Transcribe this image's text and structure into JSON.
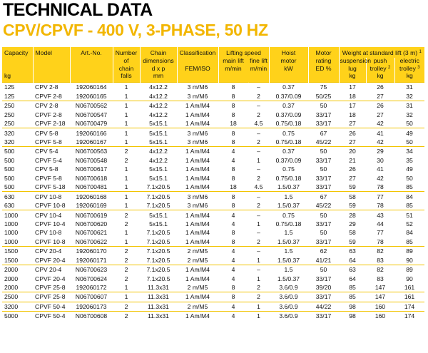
{
  "title": "TECHNICAL DATA",
  "subtitle": "CPV/CPVF - 400 V, 3-PHASE, 50 HZ",
  "header": {
    "capacity": "Capacity",
    "capacity_unit": "kg",
    "model": "Model",
    "art_no": "Art.-No.",
    "chain_falls_1": "Number",
    "chain_falls_2": "of",
    "chain_falls_3": "chain",
    "chain_falls_4": "falls",
    "chain_dim_1": "Chain",
    "chain_dim_2": "dimensions",
    "chain_dim_3": "d x p",
    "chain_dim_unit": "mm",
    "classification": "Classification",
    "classification_sub": "FEM/ISO",
    "lifting_speed": "Lifting speed",
    "main_lift": "main lift",
    "fine_lift": "fine lift",
    "speed_unit": "m/min",
    "hoist_motor": "Hoist",
    "hoist_motor_2": "motor",
    "hoist_unit": "kW",
    "motor_rating": "Motor",
    "motor_rating_2": "rating",
    "motor_rating_unit": "ED %",
    "weight": "Weight at standard lift (3 m)",
    "weight_sup": "1",
    "suspension_1": "suspension",
    "suspension_2": "lug",
    "push_1": "push",
    "push_2": "trolley",
    "push_sup": "2",
    "electric_1": "electric",
    "electric_2": "trolley",
    "electric_sup": "3",
    "weight_unit": "kg"
  },
  "rows": [
    {
      "cap": "125",
      "model": "CPV 2-8",
      "art": "192060164",
      "falls": "1",
      "chain": "4x12.2",
      "cls": "3 m/M6",
      "main": "8",
      "fine": "–",
      "kw": "0.37",
      "ed": "75",
      "susp": "17",
      "push": "26",
      "elec": "31",
      "g": true
    },
    {
      "cap": "125",
      "model": "CPVF 2-8",
      "art": "192060165",
      "falls": "1",
      "chain": "4x12.2",
      "cls": "3 m/M6",
      "main": "8",
      "fine": "2",
      "kw": "0.37/0.09",
      "ed": "50/25",
      "susp": "18",
      "push": "27",
      "elec": "32",
      "g": false
    },
    {
      "cap": "250",
      "model": "CPV 2-8",
      "art": "N06700562",
      "falls": "1",
      "chain": "4x12.2",
      "cls": "1 Am/M4",
      "main": "8",
      "fine": "–",
      "kw": "0.37",
      "ed": "50",
      "susp": "17",
      "push": "26",
      "elec": "31",
      "g": true
    },
    {
      "cap": "250",
      "model": "CPVF 2-8",
      "art": "N06700547",
      "falls": "1",
      "chain": "4x12.2",
      "cls": "1 Am/M4",
      "main": "8",
      "fine": "2",
      "kw": "0.37/0.09",
      "ed": "33/17",
      "susp": "18",
      "push": "27",
      "elec": "32",
      "g": false
    },
    {
      "cap": "250",
      "model": "CPVF 2-18",
      "art": "N06700479",
      "falls": "1",
      "chain": "5x15.1",
      "cls": "1 Am/M4",
      "main": "18",
      "fine": "4.5",
      "kw": "0.75/0.18",
      "ed": "33/17",
      "susp": "27",
      "push": "42",
      "elec": "50",
      "g": false
    },
    {
      "cap": "320",
      "model": "CPV 5-8",
      "art": "192060166",
      "falls": "1",
      "chain": "5x15.1",
      "cls": "3 m/M6",
      "main": "8",
      "fine": "–",
      "kw": "0.75",
      "ed": "67",
      "susp": "26",
      "push": "41",
      "elec": "49",
      "g": true
    },
    {
      "cap": "320",
      "model": "CPVF 5-8",
      "art": "192060167",
      "falls": "1",
      "chain": "5x15.1",
      "cls": "3 m/M6",
      "main": "8",
      "fine": "2",
      "kw": "0.75/0.18",
      "ed": "45/22",
      "susp": "27",
      "push": "42",
      "elec": "50",
      "g": false
    },
    {
      "cap": "500",
      "model": "CPV 5-4",
      "art": "N06700563",
      "falls": "2",
      "chain": "4x12.2",
      "cls": "1 Am/M4",
      "main": "4",
      "fine": "–",
      "kw": "0.37",
      "ed": "50",
      "susp": "20",
      "push": "29",
      "elec": "34",
      "g": true
    },
    {
      "cap": "500",
      "model": "CPVF 5-4",
      "art": "N06700548",
      "falls": "2",
      "chain": "4x12.2",
      "cls": "1 Am/M4",
      "main": "4",
      "fine": "1",
      "kw": "0.37/0.09",
      "ed": "33/17",
      "susp": "21",
      "push": "30",
      "elec": "35",
      "g": false
    },
    {
      "cap": "500",
      "model": "CPV 5-8",
      "art": "N06700617",
      "falls": "1",
      "chain": "5x15.1",
      "cls": "1 Am/M4",
      "main": "8",
      "fine": "–",
      "kw": "0.75",
      "ed": "50",
      "susp": "26",
      "push": "41",
      "elec": "49",
      "g": false
    },
    {
      "cap": "500",
      "model": "CPVF 5-8",
      "art": "N06700618",
      "falls": "1",
      "chain": "5x15.1",
      "cls": "1 Am/M4",
      "main": "8",
      "fine": "2",
      "kw": "0.75/0.18",
      "ed": "33/17",
      "susp": "27",
      "push": "42",
      "elec": "50",
      "g": false
    },
    {
      "cap": "500",
      "model": "CPVF 5-18",
      "art": "N06700481",
      "falls": "1",
      "chain": "7.1x20.5",
      "cls": "1 Am/M4",
      "main": "18",
      "fine": "4.5",
      "kw": "1.5/0.37",
      "ed": "33/17",
      "susp": "59",
      "push": "78",
      "elec": "85",
      "g": false
    },
    {
      "cap": "630",
      "model": "CPV 10-8",
      "art": "192060168",
      "falls": "1",
      "chain": "7.1x20.5",
      "cls": "3 m/M6",
      "main": "8",
      "fine": "–",
      "kw": "1.5",
      "ed": "67",
      "susp": "58",
      "push": "77",
      "elec": "84",
      "g": true
    },
    {
      "cap": "630",
      "model": "CPVF 10-8",
      "art": "192060169",
      "falls": "1",
      "chain": "7.1x20.5",
      "cls": "3 m/M6",
      "main": "8",
      "fine": "2",
      "kw": "1.5/0.37",
      "ed": "45/22",
      "susp": "59",
      "push": "78",
      "elec": "85",
      "g": false
    },
    {
      "cap": "1000",
      "model": "CPV 10-4",
      "art": "N06700619",
      "falls": "2",
      "chain": "5x15.1",
      "cls": "1 Am/M4",
      "main": "4",
      "fine": "–",
      "kw": "0.75",
      "ed": "50",
      "susp": "28",
      "push": "43",
      "elec": "51",
      "g": true
    },
    {
      "cap": "1000",
      "model": "CPVF 10-4",
      "art": "N06700620",
      "falls": "2",
      "chain": "5x15.1",
      "cls": "1 Am/M4",
      "main": "4",
      "fine": "1",
      "kw": "0.75/0.18",
      "ed": "33/17",
      "susp": "29",
      "push": "44",
      "elec": "52",
      "g": false
    },
    {
      "cap": "1000",
      "model": "CPV 10-8",
      "art": "N06700621",
      "falls": "1",
      "chain": "7.1x20.5",
      "cls": "1 Am/M4",
      "main": "8",
      "fine": "–",
      "kw": "1.5",
      "ed": "50",
      "susp": "58",
      "push": "77",
      "elec": "84",
      "g": false
    },
    {
      "cap": "1000",
      "model": "CPVF 10-8",
      "art": "N06700622",
      "falls": "1",
      "chain": "7.1x20.5",
      "cls": "1 Am/M4",
      "main": "8",
      "fine": "2",
      "kw": "1.5/0.37",
      "ed": "33/17",
      "susp": "59",
      "push": "78",
      "elec": "85",
      "g": false
    },
    {
      "cap": "1500",
      "model": "CPV 20-4",
      "art": "192060170",
      "falls": "2",
      "chain": "7.1x20.5",
      "cls": "2 m/M5",
      "main": "4",
      "fine": "–",
      "kw": "1.5",
      "ed": "62",
      "susp": "63",
      "push": "82",
      "elec": "89",
      "g": true
    },
    {
      "cap": "1500",
      "model": "CPVF 20-4",
      "art": "192060171",
      "falls": "2",
      "chain": "7.1x20.5",
      "cls": "2 m/M5",
      "main": "4",
      "fine": "1",
      "kw": "1.5/0.37",
      "ed": "41/21",
      "susp": "64",
      "push": "83",
      "elec": "90",
      "g": false
    },
    {
      "cap": "2000",
      "model": "CPV 20-4",
      "art": "N06700623",
      "falls": "2",
      "chain": "7.1x20.5",
      "cls": "1 Am/M4",
      "main": "4",
      "fine": "–",
      "kw": "1.5",
      "ed": "50",
      "susp": "63",
      "push": "82",
      "elec": "89",
      "g": true
    },
    {
      "cap": "2000",
      "model": "CPVF 20-4",
      "art": "N06700624",
      "falls": "2",
      "chain": "7.1x20.5",
      "cls": "1 Am/M4",
      "main": "4",
      "fine": "1",
      "kw": "1.5/0.37",
      "ed": "33/17",
      "susp": "64",
      "push": "83",
      "elec": "90",
      "g": false
    },
    {
      "cap": "2000",
      "model": "CPVF 25-8",
      "art": "192060172",
      "falls": "1",
      "chain": "11.3x31",
      "cls": "2 m/M5",
      "main": "8",
      "fine": "2",
      "kw": "3.6/0.9",
      "ed": "39/20",
      "susp": "85",
      "push": "147",
      "elec": "161",
      "g": false
    },
    {
      "cap": "2500",
      "model": "CPVF 25-8",
      "art": "N06700607",
      "falls": "1",
      "chain": "11.3x31",
      "cls": "1 Am/M4",
      "main": "8",
      "fine": "2",
      "kw": "3.6/0.9",
      "ed": "33/17",
      "susp": "85",
      "push": "147",
      "elec": "161",
      "g": true
    },
    {
      "cap": "3200",
      "model": "CPVF 50-4",
      "art": "192060173",
      "falls": "2",
      "chain": "11.3x31",
      "cls": "2 m/M5",
      "main": "4",
      "fine": "1",
      "kw": "3.6/0.9",
      "ed": "44/22",
      "susp": "98",
      "push": "160",
      "elec": "174",
      "g": true
    },
    {
      "cap": "5000",
      "model": "CPVF 50-4",
      "art": "N06700608",
      "falls": "2",
      "chain": "11.3x31",
      "cls": "1 Am/M4",
      "main": "4",
      "fine": "1",
      "kw": "3.6/0.9",
      "ed": "33/17",
      "susp": "98",
      "push": "160",
      "elec": "174",
      "g": true
    }
  ]
}
